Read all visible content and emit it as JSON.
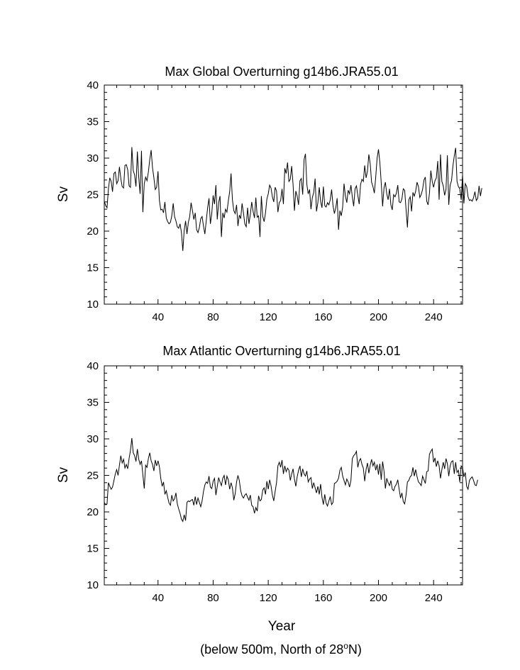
{
  "chart_data": [
    {
      "type": "line",
      "title": "Max Global Overturning g14b6.JRA55.01",
      "xlabel": "",
      "ylabel": "Sv",
      "xlim": [
        1,
        261
      ],
      "ylim": [
        10,
        40
      ],
      "xticks": [
        40,
        80,
        120,
        160,
        200,
        240
      ],
      "yticks": [
        10,
        15,
        20,
        25,
        30,
        35,
        40
      ],
      "x": {
        "start": 1,
        "step": 1
      },
      "series": [
        {
          "color": "#000000",
          "values": [
            24.1,
            23.5,
            23.2,
            25.8,
            27.3,
            26.8,
            25.4,
            27.9,
            28.1,
            26.5,
            26.9,
            28.8,
            27.2,
            26.1,
            25.9,
            29.0,
            29.1,
            28.4,
            26.2,
            26.0,
            31.5,
            28.3,
            27.7,
            26.1,
            30.9,
            27.4,
            25.1,
            31.0,
            22.6,
            26.5,
            27.4,
            26.9,
            28.1,
            29.8,
            31.1,
            28.7,
            27.3,
            25.7,
            26.0,
            28.2,
            24.2,
            22.9,
            23.0,
            22.5,
            24.0,
            21.8,
            21.3,
            21.0,
            21.2,
            22.1,
            23.8,
            22.0,
            21.4,
            20.6,
            20.4,
            21.0,
            19.8,
            17.3,
            20.1,
            21.4,
            19.6,
            21.2,
            22.0,
            23.9,
            22.8,
            21.6,
            22.5,
            20.2,
            19.8,
            20.5,
            21.7,
            22.0,
            20.7,
            19.6,
            21.4,
            23.2,
            24.5,
            21.0,
            22.4,
            24.9,
            23.7,
            26.3,
            21.6,
            23.9,
            24.8,
            19.2,
            22.5,
            21.8,
            23.0,
            22.6,
            24.1,
            25.4,
            27.9,
            24.3,
            22.8,
            22.4,
            23.6,
            20.7,
            22.2,
            21.7,
            23.8,
            22.5,
            21.0,
            20.6,
            23.2,
            21.0,
            22.3,
            24.0,
            22.7,
            21.8,
            24.6,
            21.9,
            22.1,
            19.2,
            24.8,
            22.0,
            21.3,
            22.5,
            24.4,
            25.1,
            26.3,
            25.9,
            24.7,
            24.0,
            26.0,
            25.5,
            22.6,
            23.9,
            24.2,
            25.8,
            23.7,
            28.6,
            27.9,
            29.4,
            26.8,
            27.1,
            28.9,
            26.4,
            22.8,
            25.5,
            24.8,
            23.6,
            26.9,
            27.2,
            25.0,
            29.8,
            30.6,
            26.4,
            25.1,
            25.7,
            23.0,
            24.6,
            25.3,
            27.2,
            22.7,
            23.9,
            26.0,
            24.1,
            23.2,
            26.1,
            23.5,
            23.3,
            23.9,
            23.6,
            24.3,
            25.7,
            23.5,
            22.4,
            23.2,
            24.5,
            20.2,
            22.8,
            22.1,
            23.3,
            26.5,
            24.8,
            23.9,
            25.6,
            25.1,
            26.3,
            24.7,
            23.4,
            25.8,
            26.2,
            24.9,
            23.7,
            26.4,
            27.1,
            26.8,
            29.0,
            27.3,
            28.2,
            30.5,
            29.2,
            26.7,
            26.1,
            25.2,
            27.4,
            30.0,
            31.2,
            29.4,
            26.6,
            23.4,
            25.9,
            26.7,
            25.1,
            24.3,
            25.8,
            23.6,
            22.9,
            25.0,
            24.7,
            25.2,
            26.3,
            24.0,
            23.9,
            24.4,
            25.8,
            25.6,
            23.0,
            20.5,
            24.3,
            24.7,
            22.7,
            25.3,
            24.8,
            25.5,
            26.7,
            26.1,
            24.6,
            25.0,
            25.7,
            27.0,
            27.4,
            24.1,
            23.6,
            25.2,
            28.3,
            26.8,
            26.0,
            26.9,
            27.3,
            29.6,
            24.3,
            30.5,
            26.8,
            26.2,
            24.9,
            25.7,
            30.4,
            23.6,
            26.3,
            26.9,
            28.9,
            30.3,
            31.4,
            26.8,
            26.1,
            25.8,
            24.3,
            27.7,
            23.8,
            26.5,
            26.1,
            24.7,
            24.2,
            24.3,
            24.1,
            24.6,
            25.4,
            24.2,
            24.5,
            26.2,
            24.8,
            25.9
          ]
        }
      ]
    },
    {
      "type": "line",
      "title": "Max Atlantic Overturning g14b6.JRA55.01",
      "xlabel": "Year",
      "ylabel": "Sv",
      "xlim": [
        1,
        261
      ],
      "ylim": [
        10,
        40
      ],
      "xticks": [
        40,
        80,
        120,
        160,
        200,
        240
      ],
      "yticks": [
        10,
        15,
        20,
        25,
        30,
        35,
        40
      ],
      "x": {
        "start": 1,
        "step": 1
      },
      "series": [
        {
          "color": "#000000",
          "values": [
            21.3,
            21.0,
            21.1,
            24.0,
            23.5,
            23.1,
            23.4,
            24.3,
            25.2,
            25.8,
            25.0,
            26.4,
            27.7,
            26.7,
            27.2,
            26.0,
            26.5,
            25.9,
            27.3,
            28.4,
            30.1,
            28.1,
            27.7,
            26.9,
            28.6,
            27.2,
            26.5,
            27.0,
            25.1,
            23.2,
            26.4,
            26.1,
            27.3,
            28.1,
            27.0,
            26.5,
            25.6,
            27.1,
            26.3,
            27.0,
            26.2,
            24.6,
            23.5,
            24.1,
            22.4,
            22.9,
            22.0,
            21.2,
            20.9,
            22.3,
            21.5,
            21.8,
            22.6,
            21.1,
            20.4,
            19.8,
            19.0,
            18.7,
            19.6,
            18.8,
            21.3,
            21.5,
            21.4,
            21.6,
            21.7,
            20.9,
            22.1,
            21.0,
            21.9,
            21.3,
            20.7,
            21.5,
            22.8,
            23.7,
            24.1,
            23.9,
            24.9,
            23.4,
            23.2,
            24.2,
            24.6,
            22.3,
            23.5,
            24.7,
            24.1,
            23.6,
            24.6,
            25.0,
            23.7,
            24.9,
            24.4,
            23.1,
            24.0,
            23.3,
            21.6,
            22.5,
            24.1,
            25.0,
            24.3,
            22.9,
            22.2,
            21.9,
            22.3,
            22.5,
            22.0,
            21.6,
            22.3,
            20.9,
            20.7,
            19.8,
            20.6,
            20.1,
            22.2,
            21.5,
            21.7,
            23.0,
            23.3,
            22.4,
            24.2,
            23.1,
            24.4,
            23.6,
            22.3,
            21.5,
            22.8,
            24.0,
            26.3,
            26.8,
            26.1,
            27.1,
            25.2,
            26.3,
            25.5,
            26.0,
            25.7,
            24.3,
            25.2,
            25.9,
            24.5,
            23.5,
            24.8,
            25.7,
            26.3,
            24.8,
            25.9,
            25.2,
            24.9,
            25.6,
            24.1,
            24.5,
            24.7,
            23.2,
            24.0,
            23.3,
            22.6,
            23.5,
            22.4,
            23.8,
            22.0,
            21.0,
            22.4,
            21.2,
            20.8,
            21.5,
            22.1,
            21.0,
            21.3,
            23.9,
            24.0,
            24.2,
            24.6,
            25.7,
            26.1,
            24.9,
            24.3,
            23.7,
            24.5,
            24.1,
            23.4,
            24.3,
            27.3,
            27.7,
            27.9,
            28.3,
            26.1,
            27.0,
            27.3,
            26.5,
            26.0,
            24.2,
            25.8,
            26.7,
            25.3,
            26.4,
            27.2,
            26.3,
            26.8,
            25.7,
            26.5,
            25.1,
            26.6,
            24.4,
            26.9,
            25.6,
            23.2,
            24.6,
            24.0,
            23.6,
            24.3,
            23.1,
            22.9,
            23.5,
            23.8,
            24.4,
            23.1,
            21.9,
            22.6,
            21.4,
            21.1,
            22.3,
            24.1,
            24.3,
            24.8,
            25.0,
            26.1,
            24.9,
            25.8,
            24.8,
            24.1,
            23.9,
            23.6,
            24.9,
            24.4,
            23.9,
            25.5,
            25.6,
            27.9,
            28.3,
            28.6,
            26.8,
            27.4,
            26.2,
            27.0,
            26.3,
            24.6,
            25.8,
            26.8,
            25.9,
            27.3,
            26.6,
            24.9,
            26.3,
            26.9,
            27.0,
            25.2,
            26.8,
            25.4,
            25.7,
            24.1,
            26.3,
            26.1,
            24.8,
            25.4,
            23.5,
            23.1,
            24.3,
            24.6,
            24.8,
            24.3,
            23.7,
            23.6,
            24.4
          ]
        }
      ]
    }
  ],
  "caption": {
    "prefix": "(below 500m, North of 28",
    "superscript": "o",
    "suffix": "N)"
  }
}
